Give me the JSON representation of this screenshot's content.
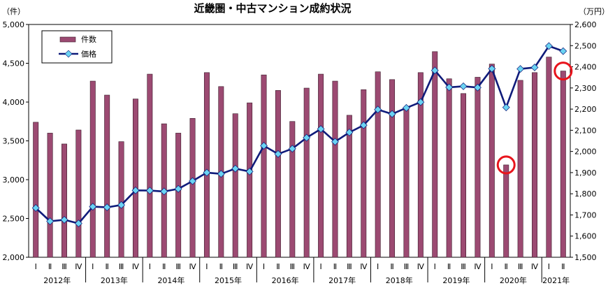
{
  "chart_data": {
    "type": "bar+line",
    "title": "近畿圏・中古マンション成約状況",
    "left_unit": "（件）",
    "right_unit": "（万円）",
    "left_axis": {
      "ylim": [
        2000,
        5000
      ],
      "ticks": [
        "2,000",
        "2,500",
        "3,000",
        "3,500",
        "4,000",
        "4,500",
        "5,000"
      ]
    },
    "right_axis": {
      "ylim": [
        1500,
        2600
      ],
      "ticks": [
        "1,500",
        "1,600",
        "1,700",
        "1,800",
        "1,900",
        "2,000",
        "2,100",
        "2,200",
        "2,300",
        "2,400",
        "2,500",
        "2,600"
      ]
    },
    "quarter_labels": [
      "Ⅰ",
      "Ⅱ",
      "Ⅲ",
      "Ⅳ"
    ],
    "years": [
      "2012年",
      "2013年",
      "2014年",
      "2015年",
      "2016年",
      "2017年",
      "2018年",
      "2019年",
      "2020年",
      "2021年"
    ],
    "categories": [
      "2012 Ⅰ",
      "2012 Ⅱ",
      "2012 Ⅲ",
      "2012 Ⅳ",
      "2013 Ⅰ",
      "2013 Ⅱ",
      "2013 Ⅲ",
      "2013 Ⅳ",
      "2014 Ⅰ",
      "2014 Ⅱ",
      "2014 Ⅲ",
      "2014 Ⅳ",
      "2015 Ⅰ",
      "2015 Ⅱ",
      "2015 Ⅲ",
      "2015 Ⅳ",
      "2016 Ⅰ",
      "2016 Ⅱ",
      "2016 Ⅲ",
      "2016 Ⅳ",
      "2017 Ⅰ",
      "2017 Ⅱ",
      "2017 Ⅲ",
      "2017 Ⅳ",
      "2018 Ⅰ",
      "2018 Ⅱ",
      "2018 Ⅲ",
      "2018 Ⅳ",
      "2019 Ⅰ",
      "2019 Ⅱ",
      "2019 Ⅲ",
      "2019 Ⅳ",
      "2020 Ⅰ",
      "2020 Ⅱ",
      "2020 Ⅲ",
      "2020 Ⅳ",
      "2021 Ⅰ",
      "2021 Ⅱ"
    ],
    "series": [
      {
        "name": "件数",
        "axis": "left",
        "kind": "bar",
        "color": "#9c4a72",
        "values": [
          3740,
          3600,
          3460,
          3640,
          4270,
          4090,
          3490,
          4040,
          4360,
          3720,
          3600,
          3790,
          4380,
          4200,
          3850,
          3990,
          4350,
          4150,
          3750,
          4180,
          4360,
          4270,
          3830,
          4160,
          4390,
          4290,
          3910,
          4380,
          4650,
          4300,
          4110,
          4320,
          4490,
          3190,
          4280,
          4380,
          4580,
          4400
        ]
      },
      {
        "name": "価格",
        "axis": "right",
        "kind": "line",
        "color": "#0f1b7a",
        "marker_color": "#6ad3f2",
        "values": [
          1733,
          1670,
          1677,
          1660,
          1739,
          1736,
          1747,
          1816,
          1815,
          1811,
          1823,
          1860,
          1900,
          1894,
          1919,
          1905,
          2027,
          1988,
          2013,
          2065,
          2106,
          2046,
          2090,
          2124,
          2198,
          2177,
          2206,
          2233,
          2383,
          2303,
          2308,
          2302,
          2391,
          2208,
          2390,
          2397,
          2498,
          2474
        ]
      }
    ],
    "highlights": [
      {
        "category": "2020 Ⅱ",
        "color": "#e8141c"
      },
      {
        "category": "2021 Ⅱ",
        "color": "#e8141c"
      }
    ],
    "grid": false,
    "legend_position": "top-left"
  }
}
